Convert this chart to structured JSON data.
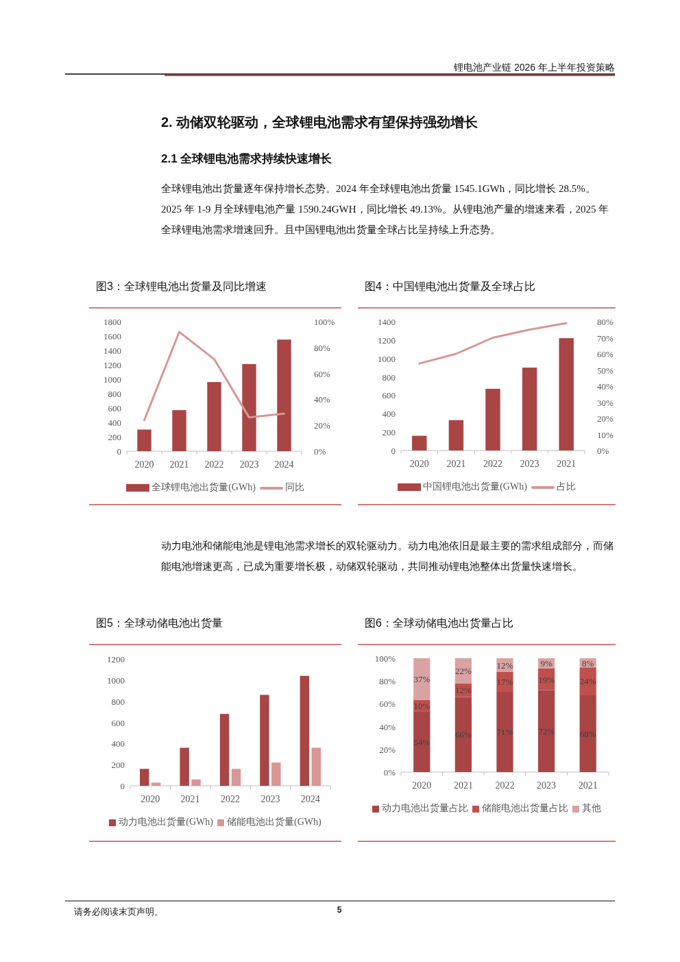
{
  "chart_data": [
    {
      "type": "bar",
      "title": "图3：全球锂电池出货量及同比增速",
      "categories": [
        "2020",
        "2021",
        "2022",
        "2023",
        "2024"
      ],
      "series": [
        {
          "name": "全球锂电池出货量(GWh)",
          "type": "bar",
          "color": "#a94545",
          "values": [
            300,
            570,
            960,
            1210,
            1550
          ]
        },
        {
          "name": "同比",
          "type": "line",
          "axis": "y2",
          "color": "#d99694",
          "values": [
            24,
            92,
            71,
            26,
            29
          ]
        }
      ],
      "ylim": [
        0,
        1800
      ],
      "yticks": [
        0,
        200,
        400,
        600,
        800,
        1000,
        1200,
        1400,
        1600,
        1800
      ],
      "y2lim": [
        0,
        100
      ],
      "y2ticks": [
        {
          "value": 0,
          "label": "0%"
        },
        {
          "value": 20,
          "label": "20%"
        },
        {
          "value": 40,
          "label": "40%"
        },
        {
          "value": 60,
          "label": "60%"
        },
        {
          "value": 80,
          "label": "80%"
        },
        {
          "value": 100,
          "label": "100%"
        }
      ],
      "legend": "bottom",
      "annotations": [
        "锂电池产业链 2026 年上半年投资策略",
        "2.  动储双轮驱动，全球锂电池需求有望保持强劲增长",
        "2.1 全球锂电池需求持续快速增长",
        "全球锂电池出货量逐年保持增长态势。2024 年全球锂电池出货量 1545.1GWh，同比增长 28.5%。2025 年 1-9 月全球锂电池产量 1590.24GWH，同比增长 49.13%。从锂电池产量的增速来看，2025 年全球锂电池需求增速回升。且中国锂电池出货量全球占比呈持续上升态势。"
      ]
    },
    {
      "type": "bar",
      "title": "图4：中国锂电池出货量及全球占比",
      "categories": [
        "2020",
        "2021",
        "2022",
        "2023",
        "2021"
      ],
      "series": [
        {
          "name": "中国锂电池出货量(GWh)",
          "type": "bar",
          "color": "#a94545",
          "values": [
            160,
            330,
            670,
            900,
            1220
          ]
        },
        {
          "name": "占比",
          "type": "line",
          "axis": "y2",
          "color": "#d99694",
          "values": [
            54,
            60,
            70,
            75,
            79
          ]
        }
      ],
      "ylim": [
        0,
        1400
      ],
      "yticks": [
        0,
        200,
        400,
        600,
        800,
        1000,
        1200,
        1400
      ],
      "y2lim": [
        0,
        80
      ],
      "y2ticks": [
        {
          "value": 0,
          "label": "0%"
        },
        {
          "value": 10,
          "label": "10%"
        },
        {
          "value": 20,
          "label": "20%"
        },
        {
          "value": 30,
          "label": "30%"
        },
        {
          "value": 40,
          "label": "40%"
        },
        {
          "value": 50,
          "label": "50%"
        },
        {
          "value": 60,
          "label": "60%"
        },
        {
          "value": 70,
          "label": "70%"
        },
        {
          "value": 80,
          "label": "80%"
        }
      ],
      "legend": "bottom"
    },
    {
      "type": "bar",
      "title": "图5：全球动储电池出货量",
      "categories": [
        "2020",
        "2021",
        "2022",
        "2023",
        "2024"
      ],
      "series": [
        {
          "name": "动力电池出货量(GWh)",
          "color": "#a94545",
          "values": [
            160,
            360,
            680,
            860,
            1040
          ]
        },
        {
          "name": "储能电池出货量(GWh)",
          "color": "#d99694",
          "values": [
            30,
            60,
            160,
            220,
            360
          ]
        }
      ],
      "ylim": [
        0,
        1200
      ],
      "yticks": [
        0,
        200,
        400,
        600,
        800,
        1000,
        1200
      ],
      "legend": "bottom",
      "annotations": [
        "动力电池和储能电池是锂电池需求增长的双轮驱动力。动力电池依旧是最主要的需求组成部分，而储能电池增速更高，已成为重要增长极，动储双轮驱动，共同推动锂电池整体出货量快速增长。"
      ]
    },
    {
      "type": "bar",
      "title": "图6：全球动储电池出货量占比",
      "categories": [
        "2020",
        "2021",
        "2022",
        "2023",
        "2021"
      ],
      "stacked": true,
      "series": [
        {
          "name": "动力电池出货量占比",
          "color": "#a94545",
          "values": [
            53.5,
            66,
            71,
            72,
            68
          ],
          "value_labels": [
            "54%",
            "66%",
            "71%",
            "72%",
            "68%"
          ]
        },
        {
          "name": "储能电池出货量占比",
          "color": "#c0504d",
          "values": [
            10,
            12,
            17,
            19,
            24
          ],
          "value_labels": [
            "10%",
            "12%",
            "17%",
            "19%",
            "24%"
          ]
        },
        {
          "name": "其他",
          "color": "#d9a3a3",
          "values": [
            36.5,
            22,
            12,
            9,
            8
          ],
          "value_labels": [
            "37%",
            "22%",
            "12%",
            "9%",
            "8%"
          ]
        }
      ],
      "ylim": [
        0,
        100
      ],
      "yticks": [
        {
          "value": 0,
          "label": "0%"
        },
        {
          "value": 20,
          "label": "20%"
        },
        {
          "value": 40,
          "label": "40%"
        },
        {
          "value": 60,
          "label": "60%"
        },
        {
          "value": 80,
          "label": "80%"
        },
        {
          "value": 100,
          "label": "100%"
        }
      ],
      "legend": "bottom",
      "annotations": [
        "请务必阅读末页声明。",
        "5"
      ]
    }
  ]
}
